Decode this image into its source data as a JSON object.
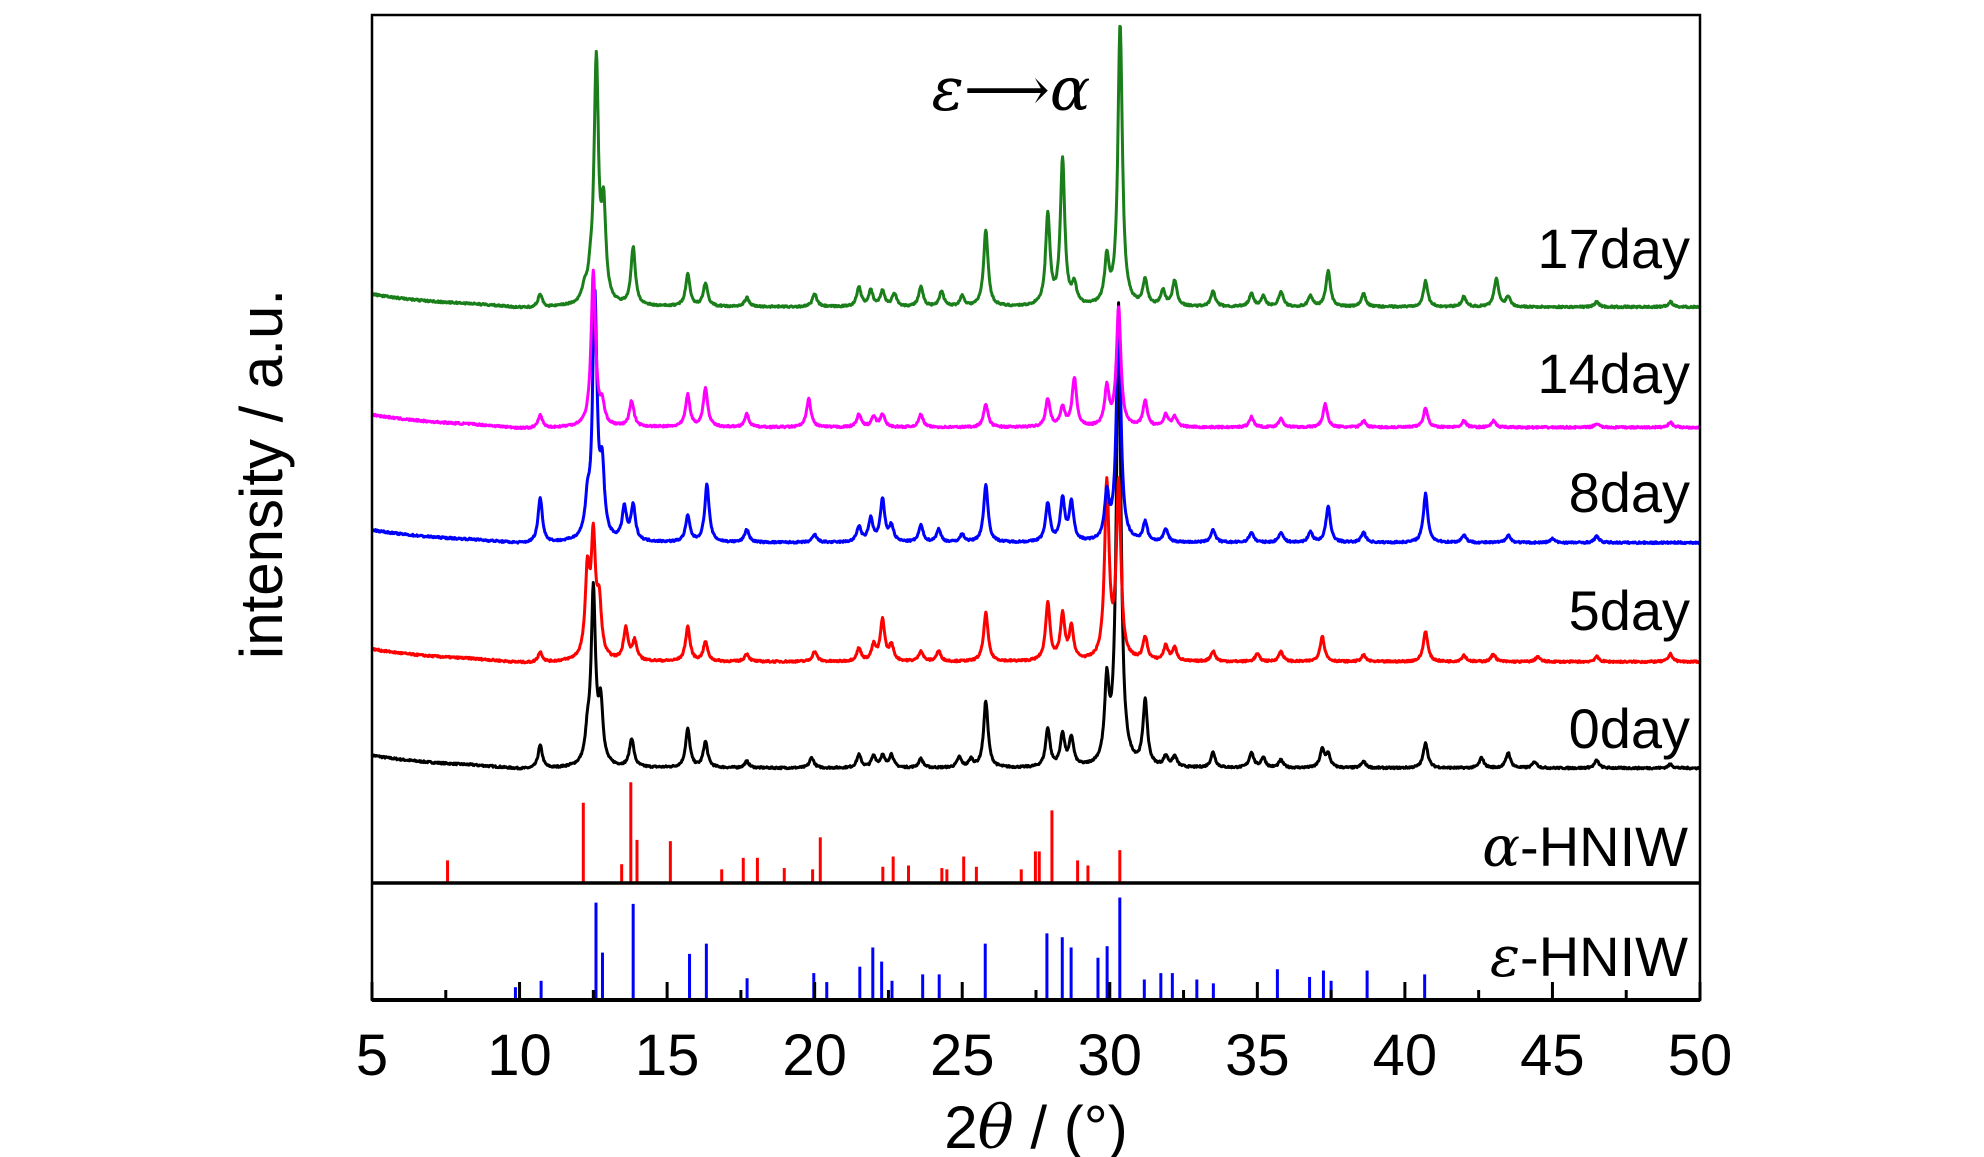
{
  "chart_data": {
    "type": "line",
    "title": "",
    "xlabel_prefix": "2",
    "xlabel_theta": "θ",
    "xlabel_suffix": " / (°)",
    "ylabel": "intensity / a.u.",
    "xlim": [
      5,
      50
    ],
    "ylim": [
      0,
      769
    ],
    "x_ticks": [
      "5",
      "10",
      "15",
      "20",
      "25",
      "30",
      "35",
      "40",
      "45",
      "50"
    ],
    "grid": false,
    "annotation": "ε⟶α",
    "series": [
      {
        "name": "0day",
        "color": "#000000",
        "offset": 181,
        "peaks": [
          [
            10.7,
            18
          ],
          [
            12.3,
            20
          ],
          [
            12.5,
            135
          ],
          [
            12.75,
            45
          ],
          [
            13.8,
            22
          ],
          [
            15.7,
            30
          ],
          [
            16.3,
            20
          ],
          [
            17.7,
            5
          ],
          [
            19.9,
            8
          ],
          [
            21.5,
            10
          ],
          [
            22.0,
            9
          ],
          [
            22.3,
            9
          ],
          [
            22.6,
            10
          ],
          [
            23.6,
            7
          ],
          [
            24.9,
            8
          ],
          [
            25.3,
            6
          ],
          [
            25.8,
            52
          ],
          [
            27.9,
            30
          ],
          [
            28.4,
            25
          ],
          [
            28.7,
            22
          ],
          [
            29.9,
            60
          ],
          [
            30.3,
            360
          ],
          [
            31.2,
            50
          ],
          [
            31.9,
            8
          ],
          [
            32.2,
            8
          ],
          [
            33.5,
            12
          ],
          [
            34.8,
            12
          ],
          [
            35.2,
            8
          ],
          [
            35.8,
            6
          ],
          [
            37.2,
            14
          ],
          [
            37.4,
            10
          ],
          [
            38.6,
            5
          ],
          [
            40.7,
            20
          ],
          [
            42.6,
            8
          ],
          [
            43.5,
            12
          ],
          [
            44.4,
            5
          ],
          [
            46.5,
            6
          ],
          [
            49.0,
            3
          ]
        ]
      },
      {
        "name": "5day",
        "color": "#ff0000",
        "offset": 264,
        "peaks": [
          [
            10.7,
            8
          ],
          [
            12.3,
            65
          ],
          [
            12.5,
            90
          ],
          [
            12.7,
            40
          ],
          [
            13.6,
            25
          ],
          [
            13.9,
            15
          ],
          [
            15.7,
            27
          ],
          [
            16.3,
            15
          ],
          [
            17.7,
            6
          ],
          [
            20.0,
            8
          ],
          [
            21.5,
            10
          ],
          [
            22.0,
            12
          ],
          [
            22.3,
            32
          ],
          [
            22.6,
            12
          ],
          [
            23.6,
            8
          ],
          [
            24.2,
            8
          ],
          [
            25.8,
            38
          ],
          [
            27.9,
            45
          ],
          [
            28.4,
            35
          ],
          [
            28.7,
            25
          ],
          [
            29.9,
            137
          ],
          [
            30.3,
            137
          ],
          [
            31.2,
            18
          ],
          [
            31.9,
            12
          ],
          [
            32.2,
            10
          ],
          [
            33.5,
            8
          ],
          [
            35.0,
            6
          ],
          [
            35.8,
            8
          ],
          [
            37.2,
            20
          ],
          [
            38.6,
            5
          ],
          [
            40.7,
            24
          ],
          [
            42.0,
            5
          ],
          [
            43.0,
            6
          ],
          [
            44.5,
            4
          ],
          [
            46.5,
            4
          ],
          [
            49.0,
            6
          ]
        ]
      },
      {
        "name": "8day",
        "color": "#0000ff",
        "offset": 357,
        "peaks": [
          [
            10.7,
            35
          ],
          [
            12.3,
            25
          ],
          [
            12.55,
            190
          ],
          [
            12.8,
            50
          ],
          [
            13.55,
            25
          ],
          [
            13.85,
            27
          ],
          [
            15.7,
            20
          ],
          [
            16.35,
            45
          ],
          [
            17.7,
            10
          ],
          [
            20.0,
            6
          ],
          [
            21.5,
            12
          ],
          [
            21.9,
            18
          ],
          [
            22.3,
            33
          ],
          [
            22.6,
            12
          ],
          [
            23.6,
            13
          ],
          [
            24.2,
            10
          ],
          [
            25.0,
            6
          ],
          [
            25.8,
            45
          ],
          [
            27.9,
            30
          ],
          [
            28.4,
            33
          ],
          [
            28.7,
            30
          ],
          [
            29.9,
            35
          ],
          [
            30.3,
            180
          ],
          [
            31.2,
            15
          ],
          [
            31.9,
            10
          ],
          [
            33.5,
            10
          ],
          [
            34.8,
            8
          ],
          [
            35.8,
            8
          ],
          [
            36.8,
            8
          ],
          [
            37.4,
            28
          ],
          [
            38.6,
            8
          ],
          [
            40.7,
            38
          ],
          [
            42.0,
            6
          ],
          [
            43.5,
            6
          ],
          [
            45.0,
            3
          ],
          [
            46.5,
            5
          ]
        ]
      },
      {
        "name": "14day",
        "color": "#ff00ff",
        "offset": 447,
        "peaks": [
          [
            10.7,
            10
          ],
          [
            12.5,
            121
          ],
          [
            12.8,
            15
          ],
          [
            13.8,
            20
          ],
          [
            15.7,
            25
          ],
          [
            16.3,
            30
          ],
          [
            17.7,
            10
          ],
          [
            19.8,
            22
          ],
          [
            21.5,
            10
          ],
          [
            22.0,
            8
          ],
          [
            22.3,
            10
          ],
          [
            23.6,
            10
          ],
          [
            25.8,
            18
          ],
          [
            27.9,
            22
          ],
          [
            28.4,
            15
          ],
          [
            28.8,
            38
          ],
          [
            29.9,
            30
          ],
          [
            30.3,
            93
          ],
          [
            31.2,
            20
          ],
          [
            31.9,
            10
          ],
          [
            32.2,
            8
          ],
          [
            34.8,
            8
          ],
          [
            35.8,
            7
          ],
          [
            37.3,
            18
          ],
          [
            38.6,
            5
          ],
          [
            40.7,
            15
          ],
          [
            42.0,
            5
          ],
          [
            43.0,
            5
          ],
          [
            46.5,
            3
          ],
          [
            49.0,
            4
          ]
        ]
      },
      {
        "name": "17day",
        "color": "#1a7f1a",
        "offset": 541,
        "peaks": [
          [
            10.7,
            10
          ],
          [
            12.2,
            10
          ],
          [
            12.4,
            15
          ],
          [
            12.6,
            188
          ],
          [
            12.85,
            70
          ],
          [
            13.85,
            45
          ],
          [
            15.7,
            25
          ],
          [
            16.3,
            18
          ],
          [
            17.7,
            7
          ],
          [
            20.0,
            10
          ],
          [
            21.5,
            15
          ],
          [
            21.9,
            12
          ],
          [
            22.3,
            12
          ],
          [
            22.7,
            10
          ],
          [
            23.6,
            15
          ],
          [
            24.3,
            12
          ],
          [
            25.0,
            8
          ],
          [
            25.8,
            60
          ],
          [
            27.9,
            70
          ],
          [
            28.4,
            114
          ],
          [
            28.8,
            15
          ],
          [
            29.9,
            35
          ],
          [
            30.35,
            220
          ],
          [
            31.2,
            20
          ],
          [
            31.8,
            12
          ],
          [
            32.2,
            20
          ],
          [
            33.5,
            12
          ],
          [
            34.8,
            10
          ],
          [
            35.2,
            8
          ],
          [
            35.8,
            12
          ],
          [
            36.8,
            8
          ],
          [
            37.4,
            28
          ],
          [
            38.6,
            10
          ],
          [
            40.7,
            20
          ],
          [
            42.0,
            8
          ],
          [
            43.1,
            22
          ],
          [
            43.5,
            8
          ],
          [
            46.5,
            4
          ],
          [
            49.0,
            4
          ]
        ]
      }
    ],
    "references": [
      {
        "name": "α-HNIW",
        "label_symbol": "α",
        "label_text": "-HNIW",
        "color": "#ff0000",
        "baseline": 91,
        "sticks": [
          [
            7.56,
            18
          ],
          [
            12.16,
            63
          ],
          [
            13.46,
            15
          ],
          [
            13.77,
            79
          ],
          [
            13.98,
            34
          ],
          [
            15.11,
            33
          ],
          [
            16.85,
            11
          ],
          [
            17.58,
            20
          ],
          [
            18.06,
            20
          ],
          [
            18.97,
            12
          ],
          [
            19.93,
            11
          ],
          [
            20.19,
            36
          ],
          [
            22.31,
            13
          ],
          [
            22.66,
            21
          ],
          [
            23.18,
            14
          ],
          [
            24.31,
            12
          ],
          [
            24.48,
            11
          ],
          [
            25.05,
            21
          ],
          [
            25.48,
            13
          ],
          [
            27.0,
            11
          ],
          [
            27.48,
            25
          ],
          [
            27.61,
            25
          ],
          [
            28.04,
            57
          ],
          [
            28.91,
            18
          ],
          [
            29.26,
            14
          ],
          [
            30.34,
            26
          ]
        ]
      },
      {
        "name": "ε-HNIW",
        "label_symbol": "ε",
        "label_text": "-HNIW",
        "color": "#0000ff",
        "baseline": 0,
        "sticks": [
          [
            9.86,
            10
          ],
          [
            10.73,
            15
          ],
          [
            12.59,
            76
          ],
          [
            12.81,
            37
          ],
          [
            13.85,
            75
          ],
          [
            15.76,
            36
          ],
          [
            16.33,
            44
          ],
          [
            17.71,
            17
          ],
          [
            19.97,
            21
          ],
          [
            20.41,
            14
          ],
          [
            21.53,
            26
          ],
          [
            21.97,
            41
          ],
          [
            22.27,
            30
          ],
          [
            22.62,
            15
          ],
          [
            23.66,
            20
          ],
          [
            24.22,
            20
          ],
          [
            25.78,
            44
          ],
          [
            27.87,
            52
          ],
          [
            28.39,
            49
          ],
          [
            28.69,
            41
          ],
          [
            29.6,
            33
          ],
          [
            29.91,
            42
          ],
          [
            30.34,
            80
          ],
          [
            31.17,
            16
          ],
          [
            31.73,
            21
          ],
          [
            32.12,
            21
          ],
          [
            32.95,
            16
          ],
          [
            33.51,
            13
          ],
          [
            35.68,
            24
          ],
          [
            36.77,
            18
          ],
          [
            37.24,
            23
          ],
          [
            37.5,
            15
          ],
          [
            38.72,
            23
          ],
          [
            40.67,
            20
          ]
        ]
      }
    ]
  }
}
